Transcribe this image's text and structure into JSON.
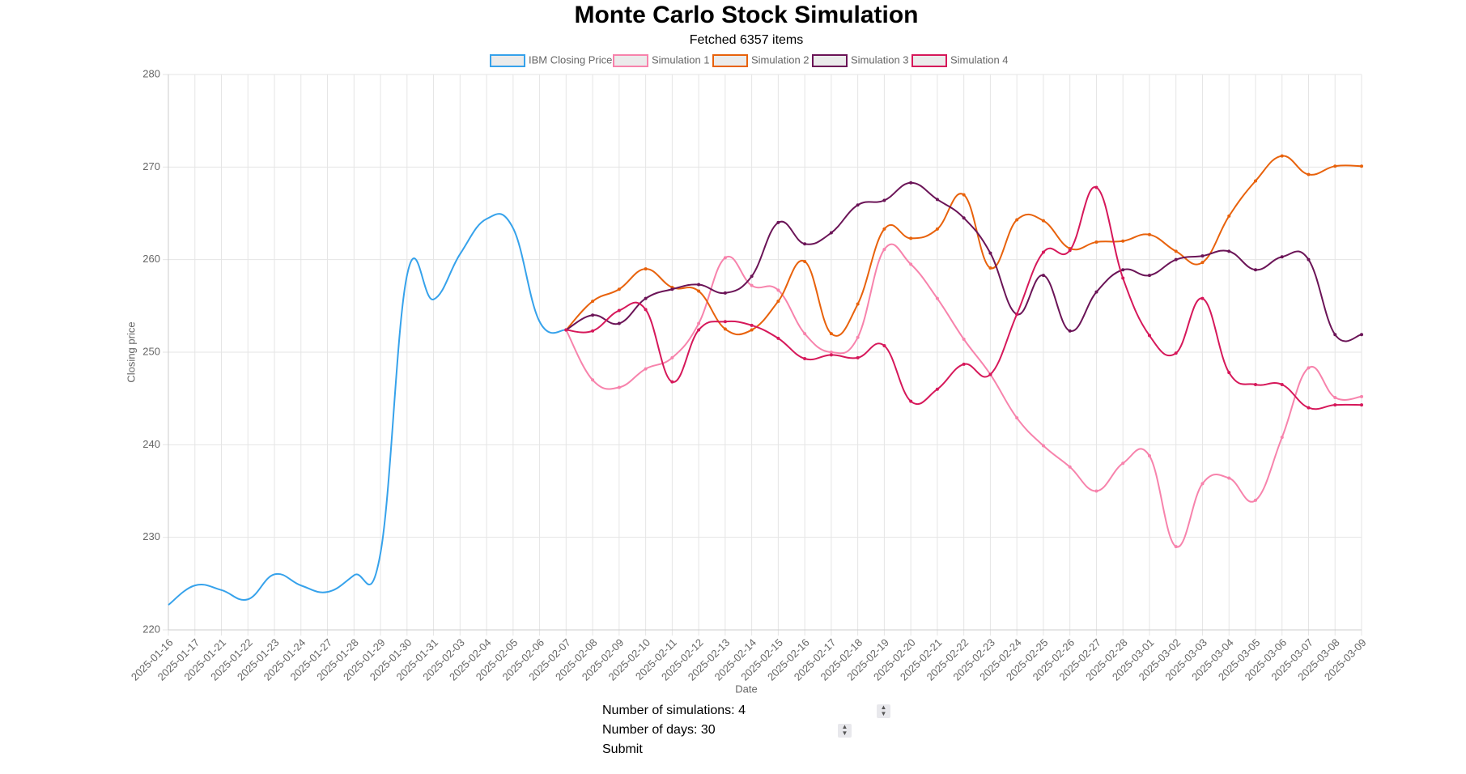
{
  "chart_data": {
    "type": "line",
    "title": "Monte Carlo Stock Simulation",
    "subtitle": "Fetched 6357 items",
    "x_label": "Date",
    "y_label": "Closing price",
    "categories": [
      "2025-01-16",
      "2025-01-17",
      "2025-01-21",
      "2025-01-22",
      "2025-01-23",
      "2025-01-24",
      "2025-01-27",
      "2025-01-28",
      "2025-01-29",
      "2025-01-30",
      "2025-01-31",
      "2025-02-03",
      "2025-02-04",
      "2025-02-05",
      "2025-02-06",
      "2025-02-07",
      "2025-02-08",
      "2025-02-09",
      "2025-02-10",
      "2025-02-11",
      "2025-02-12",
      "2025-02-13",
      "2025-02-14",
      "2025-02-15",
      "2025-02-16",
      "2025-02-17",
      "2025-02-18",
      "2025-02-19",
      "2025-02-20",
      "2025-02-21",
      "2025-02-22",
      "2025-02-23",
      "2025-02-24",
      "2025-02-25",
      "2025-02-26",
      "2025-02-27",
      "2025-02-28",
      "2025-03-01",
      "2025-03-02",
      "2025-03-03",
      "2025-03-04",
      "2025-03-05",
      "2025-03-06",
      "2025-03-07",
      "2025-03-08",
      "2025-03-09"
    ],
    "series": [
      {
        "name": "IBM Closing Price",
        "color": "#36a2eb",
        "points": false,
        "values": [
          222.7,
          224.8,
          224.3,
          223.3,
          226.0,
          224.8,
          224.1,
          225.9,
          228.3,
          258.3,
          255.7,
          260.6,
          264.4,
          263.4,
          253.3,
          252.4,
          null,
          null,
          null,
          null,
          null,
          null,
          null,
          null,
          null,
          null,
          null,
          null,
          null,
          null,
          null,
          null,
          null,
          null,
          null,
          null,
          null,
          null,
          null,
          null,
          null,
          null,
          null,
          null,
          null,
          null
        ]
      },
      {
        "name": "Simulation 1",
        "color": "#f783ac",
        "points": true,
        "values": [
          null,
          null,
          null,
          null,
          null,
          null,
          null,
          null,
          null,
          null,
          null,
          null,
          null,
          null,
          null,
          252.4,
          247.0,
          246.2,
          248.2,
          249.4,
          253.1,
          260.2,
          257.2,
          256.7,
          252.0,
          250.0,
          251.6,
          261.1,
          259.5,
          255.8,
          251.4,
          247.6,
          242.9,
          239.9,
          237.6,
          235.0,
          238.0,
          238.8,
          229.0,
          235.8,
          236.4,
          234.0,
          240.8,
          248.3,
          245.1,
          245.2
        ]
      },
      {
        "name": "Simulation 2",
        "color": "#e8620c",
        "points": true,
        "values": [
          null,
          null,
          null,
          null,
          null,
          null,
          null,
          null,
          null,
          null,
          null,
          null,
          null,
          null,
          null,
          252.4,
          255.5,
          256.8,
          259.0,
          257.0,
          256.6,
          252.5,
          252.4,
          255.5,
          259.8,
          252.0,
          255.2,
          263.3,
          262.3,
          263.3,
          267.0,
          259.1,
          264.3,
          264.2,
          261.2,
          261.9,
          262.0,
          262.7,
          260.9,
          259.7,
          264.7,
          268.5,
          271.2,
          269.2,
          270.1,
          270.1
        ]
      },
      {
        "name": "Simulation 3",
        "color": "#6b1457",
        "points": true,
        "values": [
          null,
          null,
          null,
          null,
          null,
          null,
          null,
          null,
          null,
          null,
          null,
          null,
          null,
          null,
          null,
          252.4,
          254.0,
          253.1,
          255.8,
          256.8,
          257.3,
          256.4,
          258.2,
          264.0,
          261.7,
          262.9,
          265.9,
          266.4,
          268.3,
          266.5,
          264.5,
          260.7,
          254.1,
          258.3,
          252.3,
          256.5,
          258.9,
          258.3,
          260.0,
          260.4,
          260.9,
          258.9,
          260.3,
          260.0,
          251.9,
          251.9
        ]
      },
      {
        "name": "Simulation 4",
        "color": "#d6185a",
        "points": true,
        "values": [
          null,
          null,
          null,
          null,
          null,
          null,
          null,
          null,
          null,
          null,
          null,
          null,
          null,
          null,
          null,
          252.4,
          252.3,
          254.5,
          254.6,
          246.8,
          252.4,
          253.3,
          252.9,
          251.5,
          249.3,
          249.7,
          249.4,
          250.7,
          244.7,
          246.0,
          248.7,
          247.6,
          254.1,
          260.8,
          261.0,
          267.8,
          258.0,
          251.8,
          249.9,
          255.8,
          247.8,
          246.5,
          246.5,
          244.0,
          244.3,
          244.3
        ]
      }
    ],
    "ylim": [
      220,
      280
    ],
    "yticks": [
      220,
      230,
      240,
      250,
      260,
      270,
      280
    ],
    "grid": true,
    "legend": "top"
  },
  "form": {
    "fields": [
      {
        "label": "Number of simulations:",
        "value": 4
      },
      {
        "label": "Number of days:",
        "value": 30
      }
    ],
    "submit": "Submit"
  }
}
